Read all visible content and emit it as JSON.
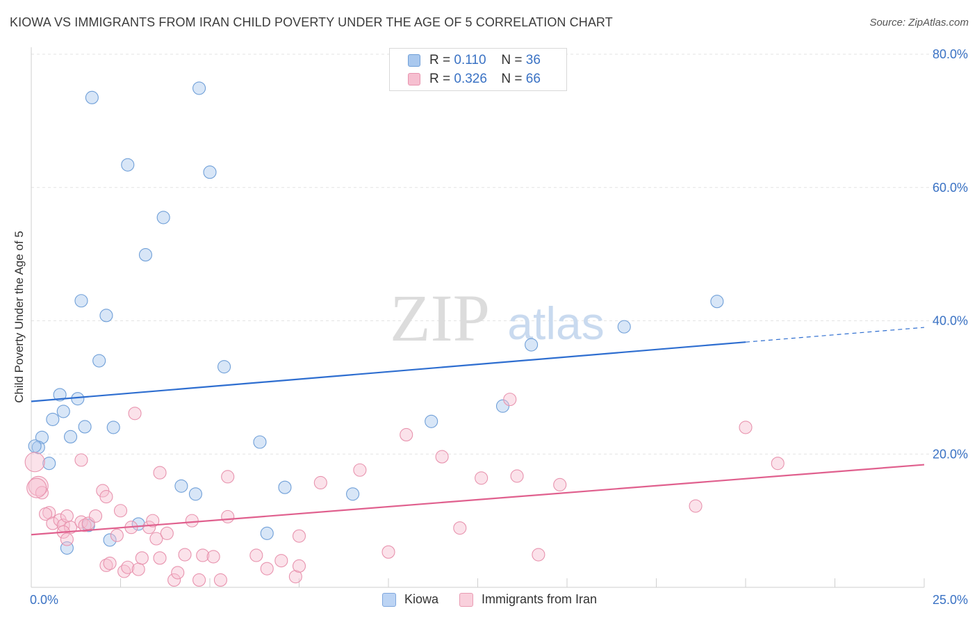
{
  "title": "KIOWA VS IMMIGRANTS FROM IRAN CHILD POVERTY UNDER THE AGE OF 5 CORRELATION CHART",
  "source": "Source: ZipAtlas.com",
  "watermark": {
    "zip": "ZIP",
    "atlas": "atlas"
  },
  "legend": {
    "rows": [
      {
        "r_label": "R =",
        "r_value": "0.110",
        "n_label": "N =",
        "n_value": "36",
        "color": "#a9c8ee",
        "border": "#6f9fd8"
      },
      {
        "r_label": "R =",
        "r_value": "0.326",
        "n_label": "N =",
        "n_value": "66",
        "color": "#f6bfd0",
        "border": "#e893ae"
      }
    ],
    "bottom": [
      {
        "label": "Kiowa",
        "color": "#bcd4f4",
        "border": "#7ea6dd"
      },
      {
        "label": "Immigrants from Iran",
        "color": "#f9d0dc",
        "border": "#e99bb3"
      }
    ]
  },
  "chart_data": {
    "type": "scatter",
    "title": "KIOWA VS IMMIGRANTS FROM IRAN CHILD POVERTY UNDER THE AGE OF 5 CORRELATION CHART",
    "xlabel": "",
    "ylabel": "Child Poverty Under the Age of 5",
    "xlim": [
      0,
      25
    ],
    "ylim": [
      0,
      80
    ],
    "x_tick_labels": [
      "0.0%",
      "25.0%"
    ],
    "y_ticks": [
      20,
      40,
      60,
      80
    ],
    "y_tick_labels": [
      "20.0%",
      "40.0%",
      "60.0%",
      "80.0%"
    ],
    "grid": true,
    "series": [
      {
        "name": "Kiowa",
        "color": "#a9c8ee",
        "stroke": "#6f9fd8",
        "line_color": "#2e6ed0",
        "trend": {
          "x0": 0,
          "y0": 27.9,
          "x1": 20,
          "y1": 36.8,
          "x_dash_end": 25,
          "y_dash_end": 39.0
        },
        "points": [
          [
            1.7,
            73.5
          ],
          [
            4.7,
            74.9
          ],
          [
            2.7,
            63.4
          ],
          [
            5.0,
            62.3
          ],
          [
            3.7,
            55.5
          ],
          [
            3.2,
            49.9
          ],
          [
            1.4,
            43.0
          ],
          [
            2.1,
            40.8
          ],
          [
            1.9,
            34.0
          ],
          [
            5.4,
            33.1
          ],
          [
            0.8,
            28.9
          ],
          [
            1.3,
            28.3
          ],
          [
            0.9,
            26.4
          ],
          [
            0.6,
            25.2
          ],
          [
            1.5,
            24.1
          ],
          [
            2.3,
            24.0
          ],
          [
            0.3,
            22.5
          ],
          [
            1.1,
            22.6
          ],
          [
            6.4,
            21.8
          ],
          [
            0.2,
            21.0
          ],
          [
            0.5,
            18.6
          ],
          [
            4.2,
            15.2
          ],
          [
            7.1,
            15.0
          ],
          [
            4.6,
            14.0
          ],
          [
            9.0,
            14.0
          ],
          [
            3.0,
            9.5
          ],
          [
            1.6,
            9.3
          ],
          [
            6.6,
            8.1
          ],
          [
            2.2,
            7.1
          ],
          [
            1.0,
            5.9
          ],
          [
            11.2,
            24.9
          ],
          [
            13.2,
            27.2
          ],
          [
            14.0,
            36.4
          ],
          [
            16.6,
            39.1
          ],
          [
            19.2,
            42.9
          ],
          [
            0.1,
            21.2
          ]
        ]
      },
      {
        "name": "Immigrants from Iran",
        "color": "#f6bfd0",
        "stroke": "#e893ae",
        "line_color": "#e0608e",
        "trend": {
          "x0": 0,
          "y0": 7.9,
          "x1": 25,
          "y1": 18.4
        },
        "points": [
          [
            0.1,
            18.8
          ],
          [
            0.2,
            15.2
          ],
          [
            0.3,
            14.2
          ],
          [
            0.5,
            11.2
          ],
          [
            0.4,
            11.0
          ],
          [
            0.6,
            9.6
          ],
          [
            0.8,
            10.1
          ],
          [
            0.9,
            9.3
          ],
          [
            1.0,
            10.7
          ],
          [
            1.1,
            9.0
          ],
          [
            0.9,
            8.3
          ],
          [
            1.4,
            9.8
          ],
          [
            1.5,
            9.3
          ],
          [
            1.6,
            9.6
          ],
          [
            1.8,
            10.7
          ],
          [
            1.4,
            19.1
          ],
          [
            2.0,
            14.5
          ],
          [
            2.1,
            13.6
          ],
          [
            2.4,
            7.8
          ],
          [
            2.5,
            11.5
          ],
          [
            2.8,
            9.0
          ],
          [
            3.3,
            9.0
          ],
          [
            3.4,
            10.0
          ],
          [
            3.5,
            7.3
          ],
          [
            2.9,
            26.1
          ],
          [
            3.6,
            17.2
          ],
          [
            3.8,
            8.1
          ],
          [
            4.5,
            10.0
          ],
          [
            5.5,
            10.6
          ],
          [
            5.5,
            16.6
          ],
          [
            2.1,
            3.3
          ],
          [
            2.2,
            3.6
          ],
          [
            2.6,
            2.4
          ],
          [
            2.7,
            3.0
          ],
          [
            3.0,
            2.7
          ],
          [
            3.1,
            4.4
          ],
          [
            3.6,
            4.4
          ],
          [
            4.0,
            1.1
          ],
          [
            4.1,
            2.2
          ],
          [
            4.3,
            4.9
          ],
          [
            4.7,
            1.1
          ],
          [
            4.8,
            4.8
          ],
          [
            5.1,
            4.6
          ],
          [
            5.3,
            1.1
          ],
          [
            6.3,
            4.8
          ],
          [
            6.6,
            2.8
          ],
          [
            7.0,
            4.0
          ],
          [
            7.4,
            1.6
          ],
          [
            7.5,
            3.2
          ],
          [
            7.5,
            7.7
          ],
          [
            8.1,
            15.7
          ],
          [
            9.2,
            17.6
          ],
          [
            10.0,
            5.3
          ],
          [
            10.5,
            22.9
          ],
          [
            11.5,
            19.6
          ],
          [
            12.0,
            8.9
          ],
          [
            12.6,
            16.4
          ],
          [
            13.4,
            28.2
          ],
          [
            13.6,
            16.7
          ],
          [
            14.2,
            4.9
          ],
          [
            14.8,
            15.4
          ],
          [
            18.6,
            12.2
          ],
          [
            20.0,
            24.0
          ],
          [
            20.9,
            18.6
          ],
          [
            0.15,
            14.9
          ],
          [
            1.0,
            7.2
          ]
        ]
      }
    ]
  }
}
